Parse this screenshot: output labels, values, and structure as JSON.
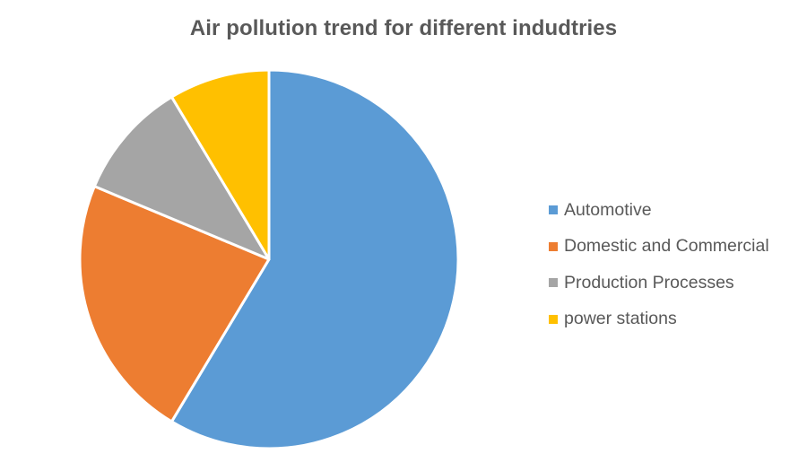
{
  "chart_data": {
    "type": "pie",
    "title": "Air pollution trend for different indudtries",
    "categories": [
      "Automotive",
      "Domestic and Commercial",
      "Production Processes",
      "power stations"
    ],
    "values": [
      58.6,
      22.7,
      10.1,
      8.6
    ],
    "unit": "percent (estimated from slice angles)",
    "colors": [
      "#5B9BD5",
      "#ED7D31",
      "#A5A5A5",
      "#FFC000"
    ],
    "start_angle_deg": 0,
    "direction": "clockwise",
    "legend_position": "right"
  },
  "title": "Air pollution trend for different indudtries",
  "legend": {
    "items": [
      {
        "label": "Automotive",
        "color": "#5B9BD5"
      },
      {
        "label": "Domestic and Commercial",
        "color": "#ED7D31"
      },
      {
        "label": "Production Processes",
        "color": "#A5A5A5"
      },
      {
        "label": "power stations",
        "color": "#FFC000"
      }
    ]
  }
}
